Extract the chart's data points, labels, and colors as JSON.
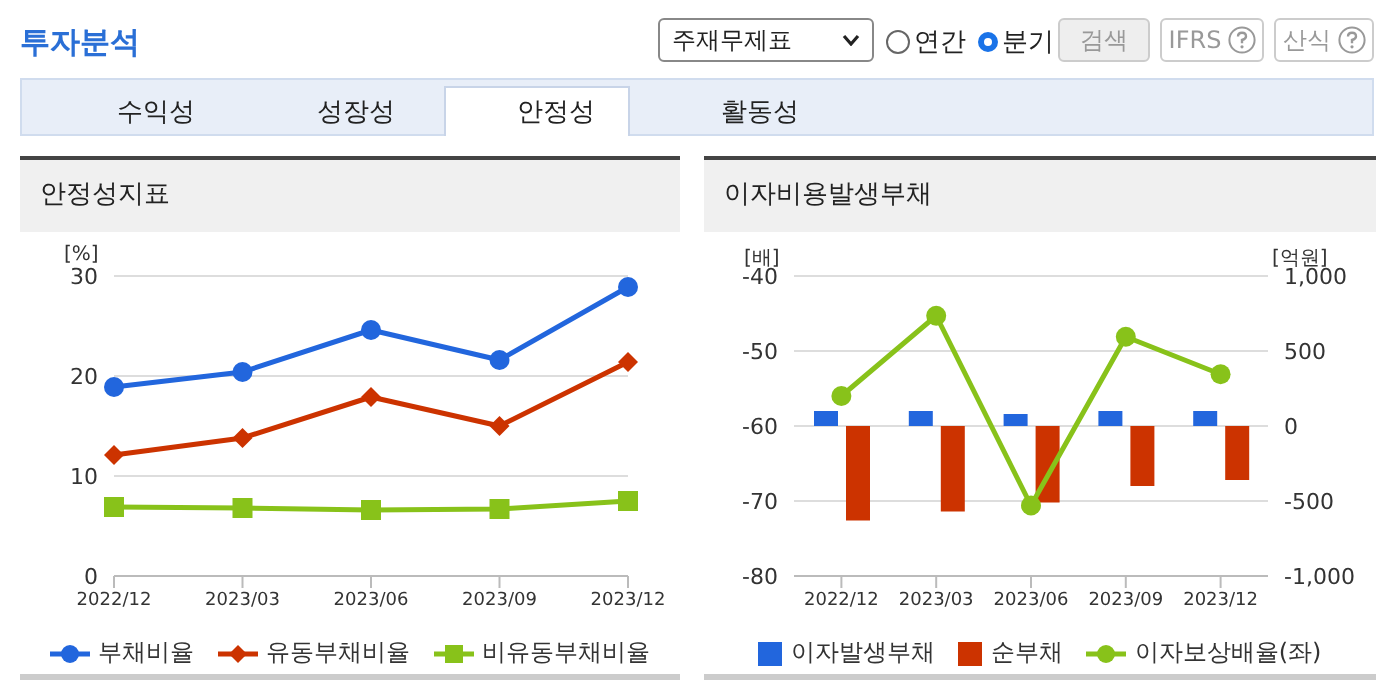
{
  "chart_data": [
    {
      "type": "other",
      "title": "투자분석",
      "annotations": [
        "주재무제표",
        "연간",
        "분기",
        "검색",
        "IFRS",
        "산식",
        "수익성",
        "성장성",
        "안정성",
        "활동성"
      ]
    },
    {
      "type": "line",
      "title": "안정성지표",
      "ylabel": "[%]",
      "categories": [
        "2022/12",
        "2023/03",
        "2023/06",
        "2023/09",
        "2023/12"
      ],
      "series": [
        {
          "name": "부채비율",
          "color": "#2266dd",
          "marker": "circle",
          "values": [
            18.9,
            20.4,
            24.6,
            21.6,
            28.9
          ]
        },
        {
          "name": "유동부채비율",
          "color": "#cc3300",
          "marker": "diamond",
          "values": [
            12.1,
            13.8,
            17.9,
            15.0,
            21.4
          ]
        },
        {
          "name": "비유동부채비율",
          "color": "#88c21a",
          "marker": "square",
          "values": [
            6.9,
            6.8,
            6.6,
            6.7,
            7.5
          ]
        }
      ],
      "ylim": [
        0,
        30
      ],
      "yticks": [
        0,
        10,
        20,
        30
      ],
      "grid": "y",
      "legend": "bottom"
    },
    {
      "type": "bar",
      "title": "이자비용발생부채",
      "ylabel": "[배]",
      "y2label": "[억원]",
      "categories": [
        "2022/12",
        "2023/03",
        "2023/06",
        "2023/09",
        "2023/12"
      ],
      "series": [
        {
          "name": "이자발생부채",
          "color": "#2266dd",
          "axis": "y2",
          "values": [
            100,
            100,
            80,
            100,
            100
          ]
        },
        {
          "name": "순부채",
          "color": "#cc3300",
          "axis": "y2",
          "values": [
            -630,
            -570,
            -510,
            -400,
            -360
          ]
        },
        {
          "name": "이자보상배율(좌)",
          "type": "line",
          "color": "#88c21a",
          "marker": "circle",
          "values": [
            -56.0,
            -45.3,
            -70.6,
            -48.1,
            -53.1
          ]
        }
      ],
      "ylim": [
        -80,
        -40
      ],
      "yticks": [
        -80,
        -70,
        -60,
        -50,
        -40
      ],
      "y2lim": [
        -1000,
        1000
      ],
      "y2ticks": [
        {
          "value": -1000,
          "label": "-1,000"
        },
        {
          "value": -500,
          "label": "-500"
        },
        0,
        500,
        {
          "value": 1000,
          "label": "1,000"
        }
      ],
      "grid": "y",
      "legend": "bottom"
    }
  ]
}
